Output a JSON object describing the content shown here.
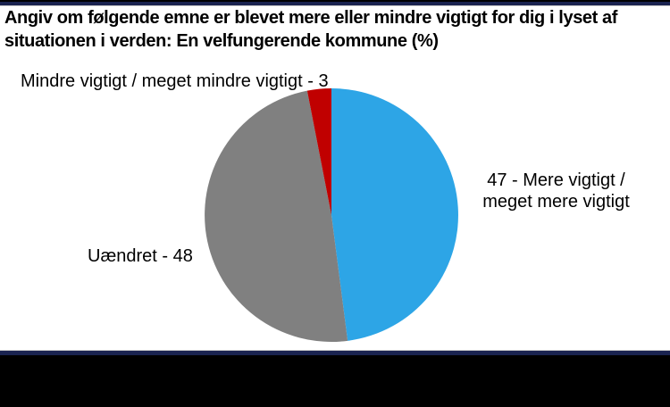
{
  "title": {
    "line1": "Angiv om følgende emne er blevet mere eller mindre vigtigt for dig i lyset af",
    "line2": "situationen i verden: En velfungerende kommune (%)",
    "full": "Angiv om følgende emne er blevet mere eller mindre vigtigt for dig i lyset af situationen i verden: En velfungerende kommune (%)"
  },
  "chart_data": {
    "type": "pie",
    "title": "Angiv om følgende emne er blevet mere eller mindre vigtigt for dig i lyset af situationen i verden: En velfungerende kommune (%)",
    "unit": "%",
    "start_angle_deg": 0,
    "direction": "clockwise",
    "legend_position": "none (outside data labels)",
    "slices": [
      {
        "name": "Mere vigtigt / meget mere vigtigt",
        "value": 47,
        "color": "#2DA5E6",
        "label_text": "47 - Mere vigtigt / meget mere vigtigt",
        "label_side": "right"
      },
      {
        "name": "Uændret",
        "value": 48,
        "color": "#808080",
        "label_text": "Uændret - 48",
        "label_side": "left"
      },
      {
        "name": "Mindre vigtigt / meget mindre vigtigt",
        "value": 3,
        "color": "#C00000",
        "label_text": "Mindre vigtigt / meget mindre vigtigt - 3",
        "label_side": "top-left"
      }
    ]
  },
  "labels": {
    "mindre": "Mindre vigtigt / meget mindre vigtigt - 3",
    "uaendret": "Uændret - 48",
    "mere_line1": "47 - Mere vigtigt /",
    "mere_line2": "meget mere vigtigt"
  },
  "colors": {
    "background": "#FFFFFF",
    "text": "#000000",
    "accent_bar_navy": "#1A2350",
    "footer_black": "#000000",
    "divider_line": "#C8C8C8",
    "slice_blue": "#2DA5E6",
    "slice_gray": "#808080",
    "slice_red": "#C00000"
  }
}
